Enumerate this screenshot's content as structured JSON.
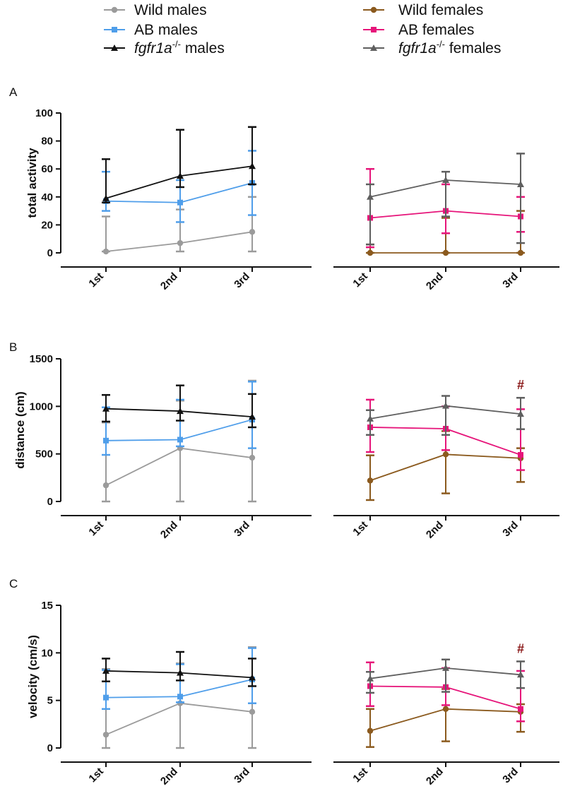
{
  "legend": {
    "left": [
      {
        "label": "Wild males",
        "italic_prefix": "",
        "superscript": "",
        "color": "#9b9b9b",
        "marker": "circle"
      },
      {
        "label": "AB males",
        "italic_prefix": "",
        "superscript": "",
        "color": "#4f9eea",
        "marker": "square"
      },
      {
        "label": " males",
        "italic_prefix": "fgfr1a",
        "superscript": "-/-",
        "color": "#111111",
        "marker": "triangle"
      }
    ],
    "right": [
      {
        "label": "Wild females",
        "italic_prefix": "",
        "superscript": "",
        "color": "#8b5a1e",
        "marker": "circle"
      },
      {
        "label": "AB females",
        "italic_prefix": "",
        "superscript": "",
        "color": "#e6157a",
        "marker": "square"
      },
      {
        "label": " females",
        "italic_prefix": "fgfr1a",
        "superscript": "-/-",
        "color": "#5f5f5f",
        "marker": "triangle"
      }
    ]
  },
  "chart_data": [
    {
      "panel": "A",
      "type": "line",
      "ylabel": "total activity",
      "ylim": [
        0,
        100
      ],
      "yticks": [
        0,
        20,
        40,
        60,
        80,
        100
      ],
      "categories": [
        "1st",
        "2nd",
        "3rd"
      ],
      "groups": [
        {
          "side": "males",
          "series": [
            {
              "name": "Wild males",
              "color": "#9b9b9b",
              "marker": "circle",
              "values": [
                1,
                7,
                15
              ],
              "err_up": [
                26,
                31,
                40
              ],
              "err_low": [
                1,
                1,
                1
              ]
            },
            {
              "name": "AB males",
              "color": "#4f9eea",
              "marker": "square",
              "values": [
                37,
                36,
                50
              ],
              "err_up": [
                58,
                52,
                73
              ],
              "err_low": [
                30,
                22,
                27
              ]
            },
            {
              "name": "fgfr1a-/- males",
              "color": "#111111",
              "marker": "triangle",
              "values": [
                39,
                55,
                62
              ],
              "err_up": [
                67,
                88,
                90
              ],
              "err_low": [
                36,
                47,
                49
              ]
            }
          ]
        },
        {
          "side": "females",
          "series": [
            {
              "name": "Wild females",
              "color": "#8b5a1e",
              "marker": "circle",
              "values": [
                0,
                0,
                0
              ],
              "err_up": [
                6,
                25,
                30
              ],
              "err_low": [
                0,
                0,
                0
              ]
            },
            {
              "name": "AB females",
              "color": "#e6157a",
              "marker": "square",
              "values": [
                25,
                30,
                26
              ],
              "err_up": [
                60,
                49,
                40
              ],
              "err_low": [
                4,
                14,
                15
              ]
            },
            {
              "name": "fgfr1a-/- females",
              "color": "#5f5f5f",
              "marker": "triangle",
              "values": [
                40,
                52,
                49
              ],
              "err_up": [
                49,
                58,
                71
              ],
              "err_low": [
                6,
                26,
                7
              ]
            }
          ]
        }
      ],
      "annotations": []
    },
    {
      "panel": "B",
      "type": "line",
      "ylabel": "distance (cm)",
      "ylim": [
        0,
        1500
      ],
      "yticks": [
        0,
        500,
        1000,
        1500
      ],
      "categories": [
        "1st",
        "2nd",
        "3rd"
      ],
      "groups": [
        {
          "side": "males",
          "series": [
            {
              "name": "Wild males",
              "color": "#9b9b9b",
              "marker": "circle",
              "values": [
                170,
                560,
                460
              ],
              "err_up": [
                830,
                1060,
                1270
              ],
              "err_low": [
                0,
                0,
                0
              ]
            },
            {
              "name": "AB males",
              "color": "#4f9eea",
              "marker": "square",
              "values": [
                640,
                650,
                860
              ],
              "err_up": [
                990,
                1070,
                1260
              ],
              "err_low": [
                490,
                580,
                560
              ]
            },
            {
              "name": "fgfr1a-/- males",
              "color": "#111111",
              "marker": "triangle",
              "values": [
                975,
                950,
                890
              ],
              "err_up": [
                1120,
                1220,
                1130
              ],
              "err_low": [
                840,
                850,
                780
              ]
            }
          ]
        },
        {
          "side": "females",
          "series": [
            {
              "name": "Wild females",
              "color": "#8b5a1e",
              "marker": "circle",
              "values": [
                220,
                495,
                455
              ],
              "err_up": [
                485,
                740,
                560
              ],
              "err_low": [
                15,
                85,
                205
              ]
            },
            {
              "name": "AB females",
              "color": "#e6157a",
              "marker": "square",
              "values": [
                780,
                765,
                490
              ],
              "err_up": [
                1070,
                1000,
                970
              ],
              "err_low": [
                520,
                540,
                330
              ]
            },
            {
              "name": "fgfr1a-/- females",
              "color": "#5f5f5f",
              "marker": "triangle",
              "values": [
                870,
                1005,
                920
              ],
              "err_up": [
                960,
                1110,
                1090
              ],
              "err_low": [
                700,
                700,
                760
              ]
            }
          ]
        }
      ],
      "annotations": [
        {
          "text": "#",
          "side": "females",
          "category": "3rd"
        }
      ]
    },
    {
      "panel": "C",
      "type": "line",
      "ylabel": "velocity (cm/s)",
      "ylim": [
        0,
        15
      ],
      "yticks": [
        0,
        5,
        10,
        15
      ],
      "categories": [
        "1st",
        "2nd",
        "3rd"
      ],
      "groups": [
        {
          "side": "males",
          "series": [
            {
              "name": "Wild males",
              "color": "#9b9b9b",
              "marker": "circle",
              "values": [
                1.4,
                4.7,
                3.8
              ],
              "err_up": [
                8.3,
                8.9,
                10.6
              ],
              "err_low": [
                0,
                0,
                0
              ]
            },
            {
              "name": "AB males",
              "color": "#4f9eea",
              "marker": "square",
              "values": [
                5.3,
                5.4,
                7.2
              ],
              "err_up": [
                8.2,
                8.8,
                10.5
              ],
              "err_low": [
                4.1,
                4.8,
                4.7
              ]
            },
            {
              "name": "fgfr1a-/- males",
              "color": "#111111",
              "marker": "triangle",
              "values": [
                8.1,
                7.9,
                7.4
              ],
              "err_up": [
                9.4,
                10.1,
                9.4
              ],
              "err_low": [
                7.0,
                7.1,
                6.5
              ]
            }
          ]
        },
        {
          "side": "females",
          "series": [
            {
              "name": "Wild females",
              "color": "#8b5a1e",
              "marker": "circle",
              "values": [
                1.8,
                4.1,
                3.8
              ],
              "err_up": [
                4.1,
                6.2,
                4.6
              ],
              "err_low": [
                0.1,
                0.7,
                1.7
              ]
            },
            {
              "name": "AB females",
              "color": "#e6157a",
              "marker": "square",
              "values": [
                6.5,
                6.4,
                4.1
              ],
              "err_up": [
                9.0,
                8.4,
                8.1
              ],
              "err_low": [
                4.4,
                4.5,
                2.8
              ]
            },
            {
              "name": "fgfr1a-/- females",
              "color": "#5f5f5f",
              "marker": "triangle",
              "values": [
                7.3,
                8.4,
                7.7
              ],
              "err_up": [
                8.0,
                9.3,
                9.1
              ],
              "err_low": [
                5.8,
                5.9,
                6.3
              ]
            }
          ]
        }
      ],
      "annotations": [
        {
          "text": "#",
          "side": "females",
          "category": "3rd"
        }
      ]
    }
  ]
}
